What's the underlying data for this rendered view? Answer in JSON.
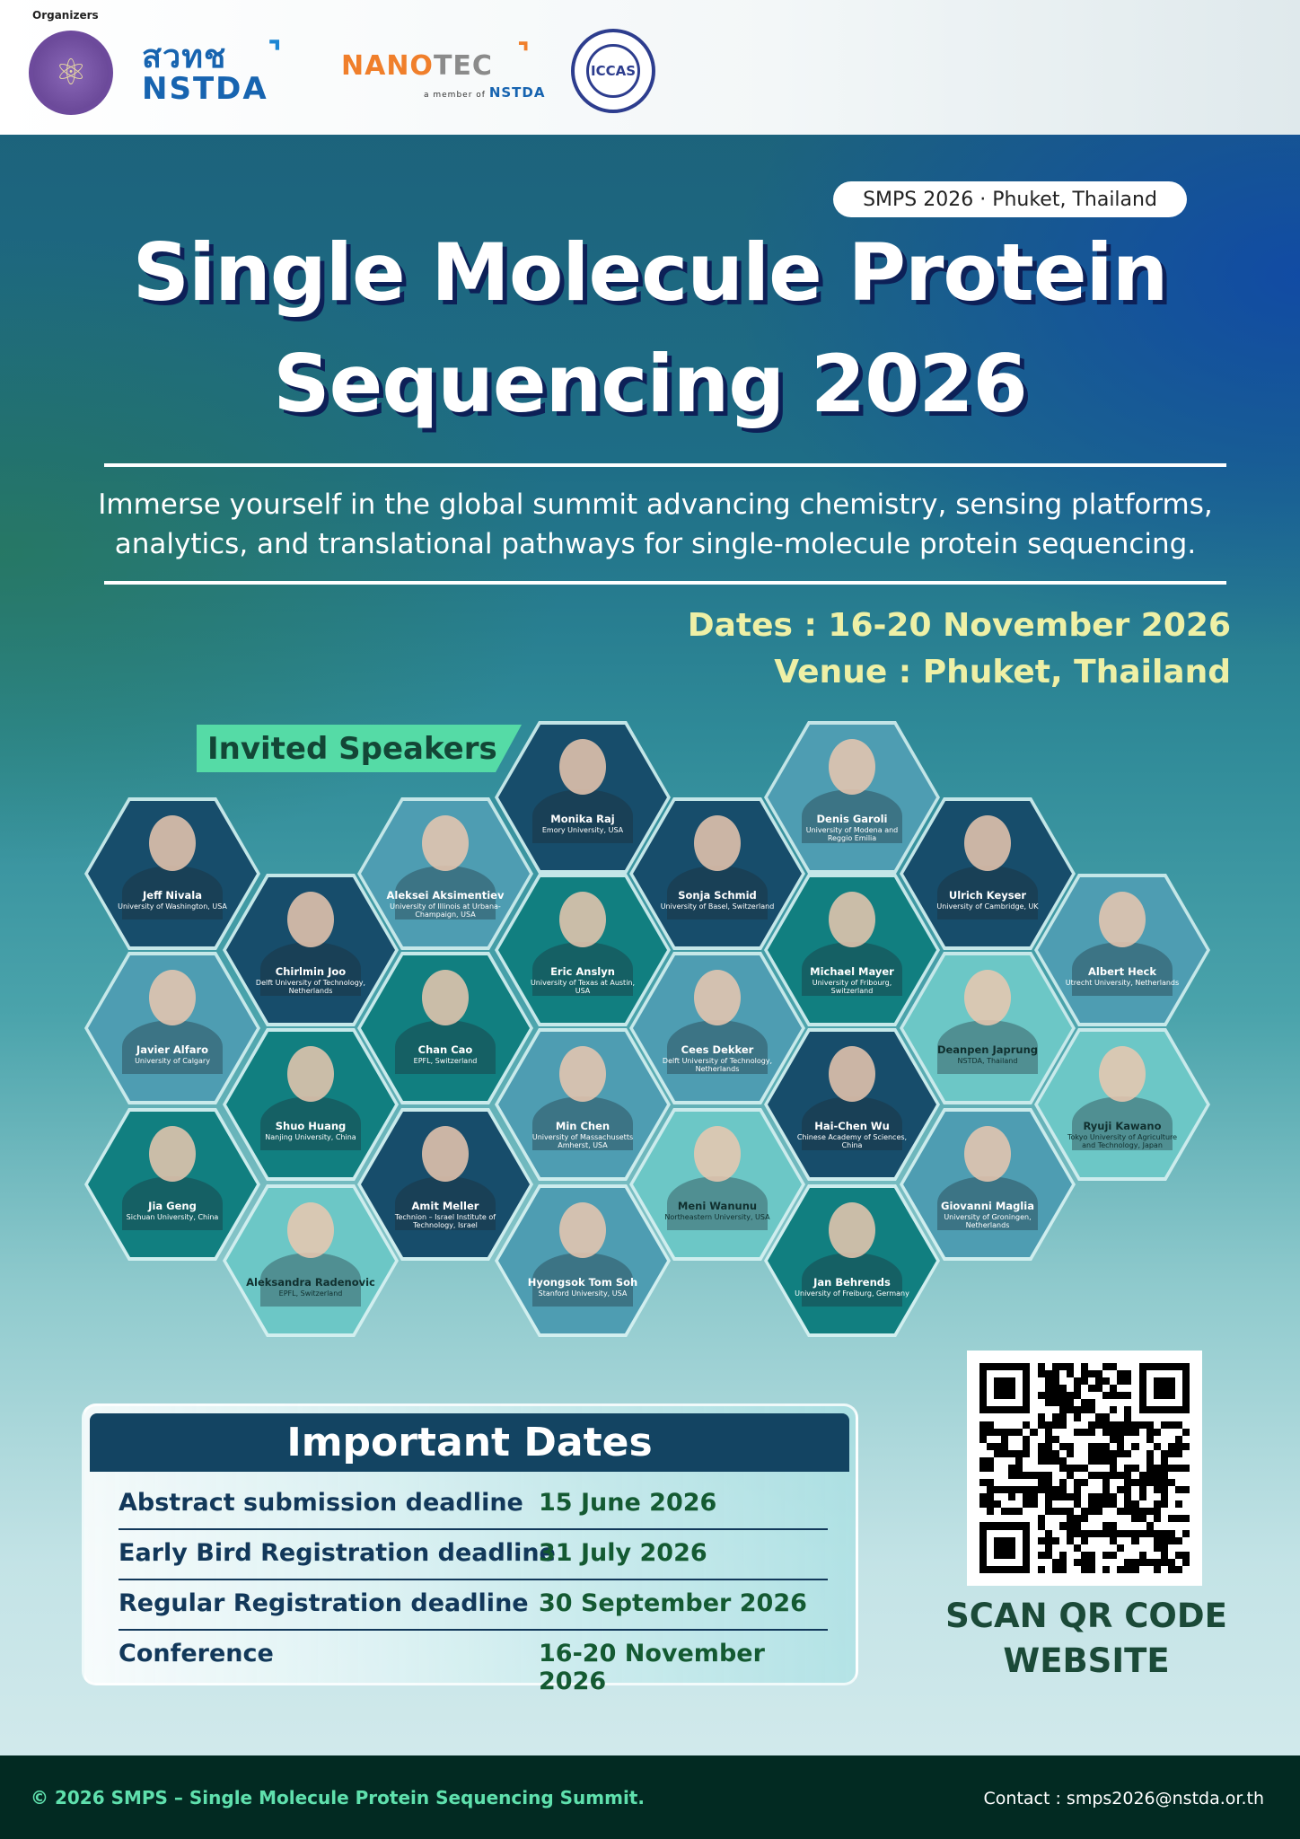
{
  "header": {
    "organizers_label": "Organizers",
    "logos": [
      {
        "name": "Ministry of Higher Education, Science, Research and Innovation seal",
        "icon": "atom-seal-icon"
      },
      {
        "name": "NSTDA",
        "text_th": "สวทช",
        "text_en": "NSTDA"
      },
      {
        "name": "NANOTEC",
        "text_nano": "NANO",
        "text_tec": "TEC",
        "member_prefix": "a member of",
        "member_org": "NSTDA"
      },
      {
        "name": "ICCAS",
        "text": "ICCAS"
      }
    ]
  },
  "hero": {
    "badge": "SMPS 2026 · Phuket, Thailand",
    "title_line1": "Single Molecule Protein",
    "title_line2": "Sequencing 2026",
    "subtitle": "Immerse yourself in the global summit advancing chemistry, sensing platforms, analytics, and translational pathways for single-molecule protein sequencing.",
    "dates": "Dates : 16-20 November 2026",
    "venue": "Venue : Phuket, Thailand"
  },
  "speakers_label": "Invited Speakers",
  "speakers": [
    {
      "name": "Jeff Nivala",
      "affiliation": "University of Washington, USA"
    },
    {
      "name": "Javier Alfaro",
      "affiliation": "University of Calgary"
    },
    {
      "name": "Jia Geng",
      "affiliation": "Sichuan University, China"
    },
    {
      "name": "Chirlmin Joo",
      "affiliation": "Delft University of Technology, Netherlands"
    },
    {
      "name": "Shuo Huang",
      "affiliation": "Nanjing University, China"
    },
    {
      "name": "Aleksandra Radenovic",
      "affiliation": "EPFL, Switzerland"
    },
    {
      "name": "Aleksei Aksimentiev",
      "affiliation": "University of Illinois at Urbana-Champaign, USA"
    },
    {
      "name": "Chan Cao",
      "affiliation": "EPFL, Switzerland"
    },
    {
      "name": "Amit Meller",
      "affiliation": "Technion – Israel Institute of Technology, Israel"
    },
    {
      "name": "Monika Raj",
      "affiliation": "Emory University, USA"
    },
    {
      "name": "Eric Anslyn",
      "affiliation": "University of Texas at Austin, USA"
    },
    {
      "name": "Min Chen",
      "affiliation": "University of Massachusetts Amherst, USA"
    },
    {
      "name": "Hyongsok Tom Soh",
      "affiliation": "Stanford University, USA"
    },
    {
      "name": "Sonja Schmid",
      "affiliation": "University of Basel, Switzerland"
    },
    {
      "name": "Cees Dekker",
      "affiliation": "Delft University of Technology, Netherlands"
    },
    {
      "name": "Meni Wanunu",
      "affiliation": "Northeastern University, USA"
    },
    {
      "name": "Denis Garoli",
      "affiliation": "University of Modena and Reggio Emilia"
    },
    {
      "name": "Michael Mayer",
      "affiliation": "University of Fribourg, Switzerland"
    },
    {
      "name": "Hai-Chen Wu",
      "affiliation": "Chinese Academy of Sciences, China"
    },
    {
      "name": "Jan Behrends",
      "affiliation": "University of Freiburg, Germany"
    },
    {
      "name": "Ulrich Keyser",
      "affiliation": "University of Cambridge, UK"
    },
    {
      "name": "Deanpen Japrung",
      "affiliation": "NSTDA, Thailand"
    },
    {
      "name": "Giovanni Maglia",
      "affiliation": "University of Groningen, Netherlands"
    },
    {
      "name": "Albert Heck",
      "affiliation": "Utrecht University, Netherlands"
    },
    {
      "name": "Ryuji Kawano",
      "affiliation": "Tokyo University of Agriculture and Technology, Japan"
    }
  ],
  "important_dates": {
    "title": "Important Dates",
    "rows": [
      {
        "label": "Abstract submission deadline",
        "date": "15 June 2026"
      },
      {
        "label": "Early Bird Registration deadline",
        "date": "31 July 2026"
      },
      {
        "label": "Regular Registration deadline",
        "date": "30 September 2026"
      },
      {
        "label": "Conference",
        "date": "16-20 November 2026"
      }
    ]
  },
  "qr": {
    "line1": "SCAN QR CODE",
    "line2": "WEBSITE"
  },
  "footer": {
    "copyright": "© 2026 SMPS – Single Molecule Protein Sequencing Summit.",
    "contact": "Contact : smps2026@nstda.or.th"
  }
}
